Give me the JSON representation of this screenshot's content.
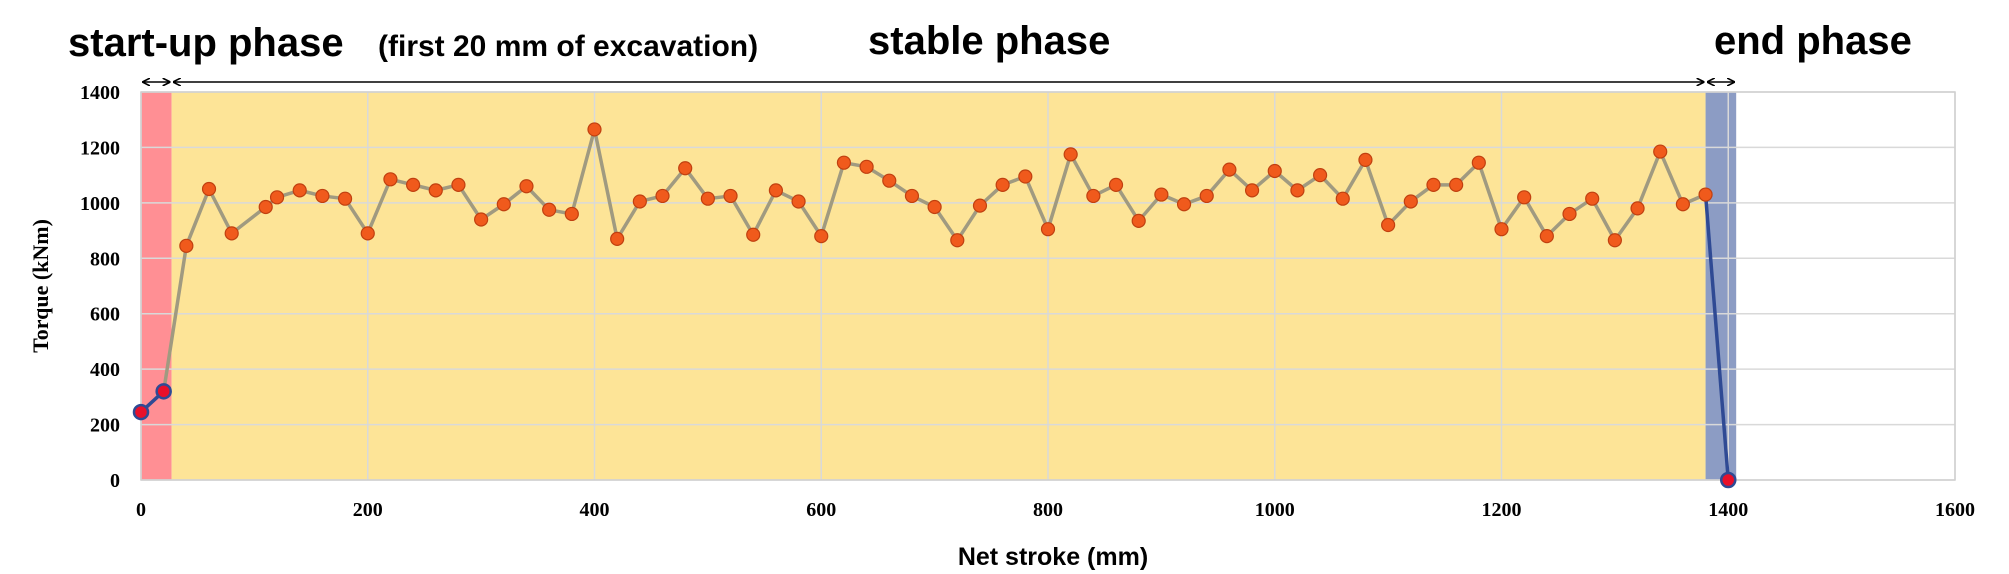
{
  "chart_data": {
    "type": "line",
    "xlabel": "Net stroke (mm)",
    "ylabel": "Torque (kNm)",
    "xlim": [
      0,
      1600
    ],
    "ylim": [
      0,
      1400
    ],
    "x_ticks": [
      0,
      200,
      400,
      600,
      800,
      1000,
      1200,
      1400,
      1600
    ],
    "y_ticks": [
      0,
      200,
      400,
      600,
      800,
      1000,
      1200,
      1400
    ],
    "grid": true,
    "phases": [
      {
        "key": "startup",
        "title": "start-up phase",
        "subtitle": "(first 20 mm of excavation)",
        "x_range": [
          0,
          27
        ],
        "color": "#ff8f94"
      },
      {
        "key": "stable",
        "title": "stable phase",
        "x_range": [
          27,
          1380
        ],
        "color": "#fde497"
      },
      {
        "key": "end",
        "title": "end phase",
        "x_range": [
          1380,
          1407
        ],
        "color": "#8c9cc4"
      }
    ],
    "colors": {
      "line": "#a09a80",
      "phase_line": "#2f4a94",
      "marker_fill": "#f05a1c",
      "marker_edge": "#c04010",
      "phase_marker_fill": "#e8102a",
      "phase_marker_edge": "#2f4a94"
    },
    "series": [
      {
        "x": [
          0,
          20,
          40,
          60,
          80,
          110,
          120,
          140,
          160,
          180,
          200,
          220,
          240,
          260,
          280,
          300,
          320,
          340,
          360,
          380,
          400,
          420,
          440,
          460,
          480,
          500,
          520,
          540,
          560,
          580,
          600,
          620,
          640,
          660,
          680,
          700,
          720,
          740,
          760,
          780,
          800,
          820,
          840,
          860,
          880,
          900,
          920,
          940,
          960,
          980,
          1000,
          1020,
          1040,
          1060,
          1080,
          1100,
          1120,
          1140,
          1160,
          1180,
          1200,
          1220,
          1240,
          1260,
          1280,
          1300,
          1320,
          1340,
          1360,
          1380,
          1400
        ],
        "y": [
          245,
          320,
          845,
          1050,
          890,
          985,
          1020,
          1045,
          1025,
          1015,
          890,
          1085,
          1065,
          1045,
          1065,
          940,
          995,
          1060,
          975,
          960,
          1265,
          870,
          1005,
          1025,
          1125,
          1015,
          1025,
          885,
          1045,
          1005,
          880,
          1145,
          1130,
          1080,
          1025,
          985,
          865,
          990,
          1065,
          1095,
          905,
          1175,
          1025,
          1065,
          935,
          1030,
          995,
          1025,
          1120,
          1045,
          1115,
          1045,
          1100,
          1015,
          1155,
          920,
          1005,
          1065,
          1065,
          1145,
          905,
          1020,
          880,
          960,
          1015,
          865,
          980,
          1185,
          995,
          1030,
          0
        ]
      }
    ]
  }
}
